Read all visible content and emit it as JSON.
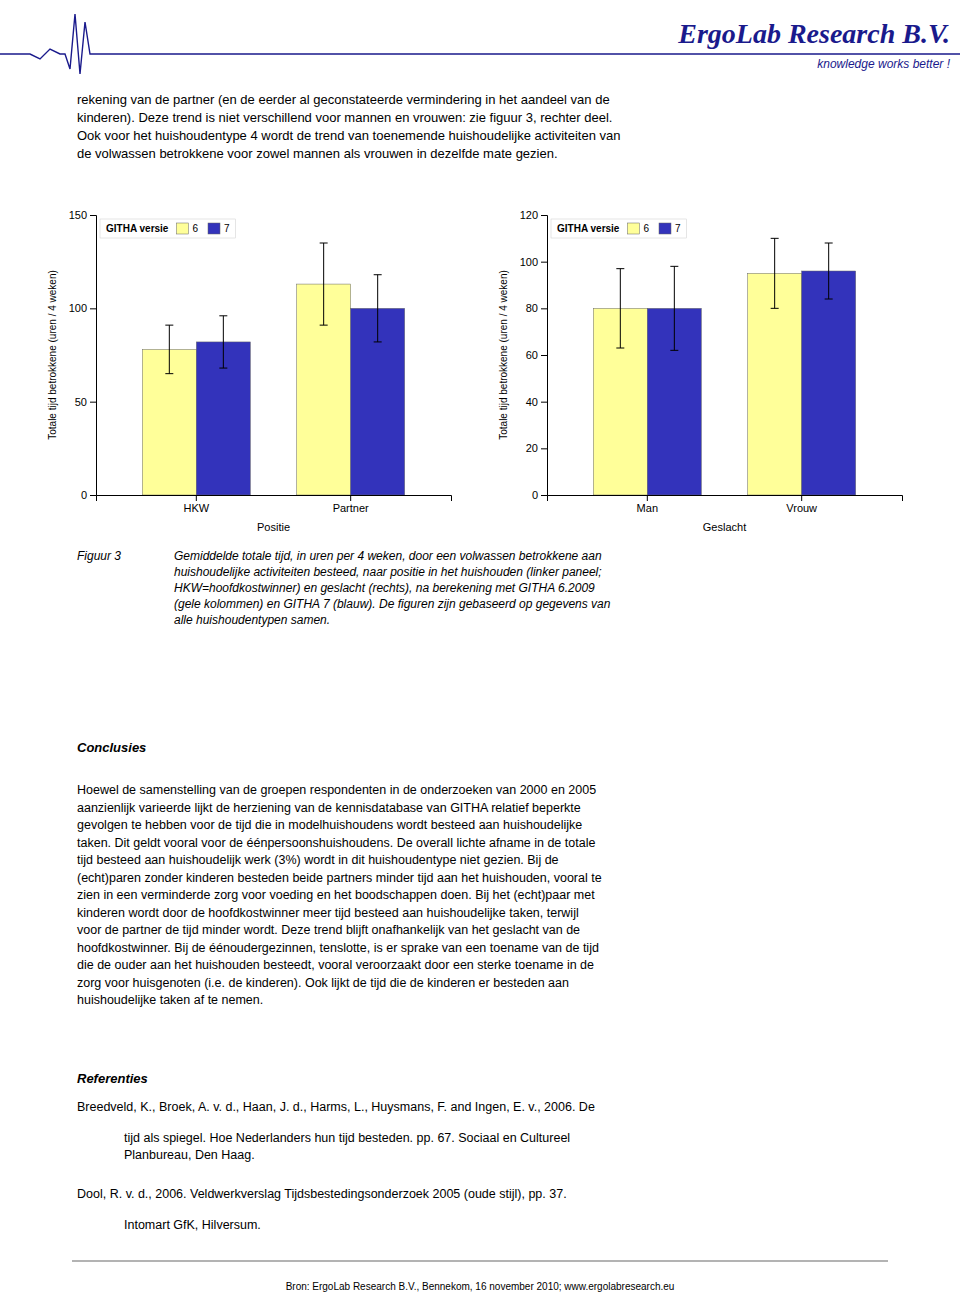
{
  "chart_data": [
    {
      "type": "bar",
      "categories": [
        "HKW",
        "Partner"
      ],
      "series": [
        {
          "name": "6",
          "color": "#FFFF99",
          "values": [
            78,
            113
          ],
          "errors": [
            13,
            22
          ]
        },
        {
          "name": "7",
          "color": "#3333BB",
          "values": [
            82,
            100
          ],
          "errors": [
            14,
            18
          ]
        }
      ],
      "xlabel": "Positie",
      "ylabel": "Totale tijd betrokkene (uren / 4 weken)",
      "ylim": [
        0,
        150
      ],
      "yticks": [
        0,
        50,
        100,
        150
      ],
      "grid": false,
      "legend": "upper left",
      "legend_title": "GITHA versie"
    },
    {
      "type": "bar",
      "categories": [
        "Man",
        "Vrouw"
      ],
      "series": [
        {
          "name": "6",
          "color": "#FFFF99",
          "values": [
            80,
            95
          ],
          "errors": [
            17,
            15
          ]
        },
        {
          "name": "7",
          "color": "#3333BB",
          "values": [
            80,
            96
          ],
          "errors": [
            18,
            12
          ]
        }
      ],
      "xlabel": "Geslacht",
      "ylabel": "Totale tijd betrokkene (uren / 4 weken)",
      "ylim": [
        0,
        120
      ],
      "yticks": [
        0,
        20,
        40,
        60,
        80,
        100,
        120
      ],
      "grid": false,
      "legend": "upper left",
      "legend_title": "GITHA versie"
    }
  ],
  "page": {
    "header_color": "#1A1A8C",
    "header_text": "ErgoLab Research B.V.",
    "subheader_text": "knowledge works better !",
    "body_text": "rekening van de partner (en de eerder al geconstateerde vermindering in het aandeel van de\nkinderen). Deze trend is niet verschillend voor mannen en vrouwen: zie figuur 3, rechter deel.\nOok voor het huishoudentype 4 wordt de trend van toenemende huishoudelijke activiteiten van\nde volwassen betrokkene voor zowel mannen als vrouwen in dezelfde mate gezien.",
    "figure_label": "Figuur 3",
    "figure_caption": "Gemiddelde totale tijd, in uren per 4 weken, door een volwassen betrokkene aan\nhuishoudelijke activiteiten besteed, naar positie in het huishouden (linker paneel;\nHKW=hoofdkostwinner) en geslacht (rechts), na berekening met GITHA 6.2009\n(gele kolommen) en GITHA 7 (blauw). De figuren zijn gebaseerd op gegevens van\nalle huishoudentypen samen.",
    "section_conclusies": "Conclusies",
    "body_conclusies": "Hoewel de samenstelling van de groepen respondenten in de onderzoeken van 2000 en 2005\naanzienlijk varieerde lijkt de herziening van de kennisdatabase van GITHA relatief beperkte\ngevolgen te hebben voor de tijd die in modelhuishoudens wordt besteed aan huishoudelijke\ntaken. Dit geldt vooral voor de éénpersoonshuishoudens. De overall lichte afname in de totale\ntijd besteed aan huishoudelijk werk (3%) wordt in dit huishoudentype niet gezien. Bij de\n(echt)paren zonder kinderen besteden beide partners minder tijd aan het huishouden, vooral te\nzien in een verminderde zorg voor voeding en het boodschappen doen. Bij het (echt)paar met\nkinderen wordt door de hoofdkostwinner meer tijd besteed aan huishoudelijke taken, terwijl\nvoor de partner de tijd minder wordt. Deze trend blijft onafhankelijk van het geslacht van de\nhoofdkostwinner. Bij de éénoudergezinnen, tenslotte, is er sprake van een toename van de tijd\ndie de ouder aan het huishouden besteedt, vooral veroorzaakt door een sterke toename in de\nzorg voor huisgenoten (i.e. de kinderen). Ook lijkt de tijd die de kinderen er besteden aan\nhuishoudelijke taken af te nemen.",
    "section_referenties": "Referenties",
    "references": [
      {
        "first_line": "Breedveld, K., Broek, A. v. d., Haan, J. d., Harms, L., Huysmans, F. and Ingen, E. v., 2006. De",
        "continuation": "tijd als spiegel. Hoe Nederlanders hun tijd besteden. pp. 67. Sociaal en Cultureel\nPlanbureau, Den Haag."
      },
      {
        "first_line": "Dool, R. v. d., 2006. Veldwerkverslag Tijdsbestedingsonderzoek 2005 (oude stijl), pp. 37.",
        "continuation": "Intomart GfK, Hilversum."
      }
    ],
    "footer_text": "Bron: ErgoLab Research B.V., Bennekom, 16 november 2010; www.ergolabresearch.eu"
  }
}
